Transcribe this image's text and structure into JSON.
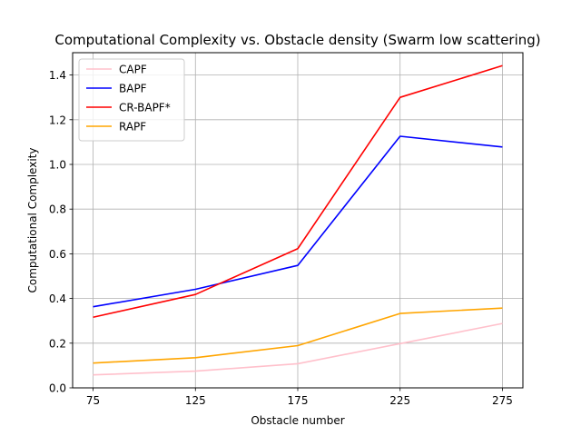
{
  "chart_data": {
    "type": "line",
    "title": "Computational Complexity vs. Obstacle density (Swarm low scattering)",
    "xlabel": "Obstacle number",
    "ylabel": "Computational Complexity",
    "categories": [
      "75",
      "125",
      "175",
      "225",
      "275"
    ],
    "x": [
      75,
      125,
      175,
      225,
      275
    ],
    "xlim": [
      65,
      285
    ],
    "ylim": [
      0,
      1.5
    ],
    "yticks": [
      "0.0",
      "0.2",
      "0.4",
      "0.6",
      "0.8",
      "1.0",
      "1.2",
      "1.4"
    ],
    "ytick_values": [
      0,
      0.2,
      0.4,
      0.6,
      0.8,
      1.0,
      1.2,
      1.4
    ],
    "grid": true,
    "legend_position": "top-left",
    "series": [
      {
        "name": "CAPF",
        "color": "#ffc0cb",
        "values": [
          0.058,
          0.075,
          0.108,
          0.198,
          0.288
        ]
      },
      {
        "name": "BAPF",
        "color": "#0000ff",
        "values": [
          0.363,
          0.441,
          0.548,
          1.126,
          1.078
        ]
      },
      {
        "name": "CR-BAPF*",
        "color": "#ff0000",
        "values": [
          0.316,
          0.418,
          0.623,
          1.3,
          1.442
        ]
      },
      {
        "name": "RAPF",
        "color": "#ffa500",
        "values": [
          0.111,
          0.135,
          0.189,
          0.333,
          0.357
        ]
      }
    ]
  }
}
